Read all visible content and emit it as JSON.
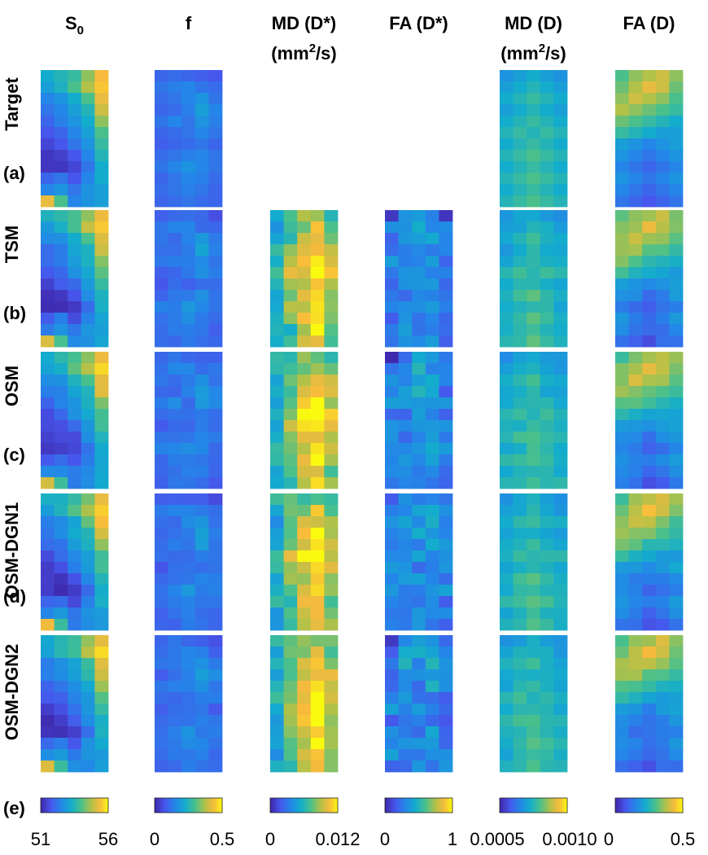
{
  "chart_data": {
    "type": "heatmap",
    "columns": [
      {
        "id": "S0",
        "header_main": "S",
        "header_sub": "0",
        "header_line2": ""
      },
      {
        "id": "f",
        "header_main": "f",
        "header_sub": "",
        "header_line2": ""
      },
      {
        "id": "MDDs",
        "header_main": "MD (D*)",
        "header_sub": "",
        "header_line2_a": "(mm",
        "header_line2_sup": "2",
        "header_line2_b": "/s)"
      },
      {
        "id": "FADs",
        "header_main": "FA (D*)",
        "header_sub": "",
        "header_line2": ""
      },
      {
        "id": "MDD",
        "header_main": "MD (D)",
        "header_sub": "",
        "header_line2_a": "(mm",
        "header_line2_sup": "2",
        "header_line2_b": "/s)"
      },
      {
        "id": "FAD",
        "header_main": "FA (D)",
        "header_sub": "",
        "header_line2": ""
      }
    ],
    "rows": [
      {
        "method": "Target",
        "letter": "(a)",
        "present": [
          true,
          true,
          false,
          false,
          true,
          true
        ]
      },
      {
        "method": "TSM",
        "letter": "(b)",
        "present": [
          true,
          true,
          true,
          true,
          true,
          true
        ]
      },
      {
        "method": "OSM",
        "letter": "(c)",
        "present": [
          true,
          true,
          true,
          true,
          true,
          true
        ]
      },
      {
        "method": "OSM-DGN1",
        "letter": "(d)",
        "present": [
          true,
          true,
          true,
          true,
          true,
          true
        ]
      },
      {
        "method": "OSM-DGN2",
        "letter": "(e)",
        "present": [
          true,
          true,
          true,
          true,
          true,
          true
        ]
      }
    ],
    "grid_size": {
      "cols": 5,
      "rows": 12
    },
    "colormap": "parula",
    "colorbar_ticks": [
      {
        "min": "51",
        "max": "56"
      },
      {
        "min": "0",
        "max": "0.5"
      },
      {
        "min": "0",
        "max": "0.012"
      },
      {
        "min": "0",
        "max": "1"
      },
      {
        "min": "0.0005",
        "max": "0.0010"
      },
      {
        "min": "0",
        "max": "0.5"
      }
    ],
    "colorbar_tick_labels": [
      "51",
      "56",
      "0",
      "0.5",
      "0",
      "0.012",
      "0",
      "1",
      "0.0005",
      "0.0010",
      "0",
      "0.5"
    ],
    "maps_normalized": {
      "S0": [
        [
          0.45,
          0.5,
          0.55,
          0.7,
          0.88
        ],
        [
          0.4,
          0.48,
          0.6,
          0.75,
          0.9
        ],
        [
          0.3,
          0.35,
          0.45,
          0.6,
          0.85
        ],
        [
          0.25,
          0.3,
          0.4,
          0.5,
          0.8
        ],
        [
          0.2,
          0.28,
          0.35,
          0.45,
          0.7
        ],
        [
          0.15,
          0.2,
          0.3,
          0.4,
          0.6
        ],
        [
          0.1,
          0.15,
          0.25,
          0.35,
          0.55
        ],
        [
          0.05,
          0.08,
          0.15,
          0.3,
          0.5
        ],
        [
          0.05,
          0.05,
          0.1,
          0.25,
          0.45
        ],
        [
          0.2,
          0.25,
          0.15,
          0.3,
          0.45
        ],
        [
          0.3,
          0.35,
          0.25,
          0.35,
          0.4
        ],
        [
          0.85,
          0.6,
          0.3,
          0.35,
          0.4
        ]
      ],
      "f": [
        [
          0.2,
          0.22,
          0.2,
          0.18,
          0.15
        ],
        [
          0.25,
          0.28,
          0.3,
          0.25,
          0.22
        ],
        [
          0.22,
          0.25,
          0.3,
          0.35,
          0.25
        ],
        [
          0.2,
          0.22,
          0.28,
          0.4,
          0.3
        ],
        [
          0.25,
          0.3,
          0.25,
          0.35,
          0.28
        ],
        [
          0.2,
          0.22,
          0.25,
          0.3,
          0.25
        ],
        [
          0.18,
          0.2,
          0.22,
          0.25,
          0.2
        ],
        [
          0.22,
          0.25,
          0.28,
          0.3,
          0.25
        ],
        [
          0.25,
          0.3,
          0.35,
          0.3,
          0.25
        ],
        [
          0.2,
          0.25,
          0.3,
          0.28,
          0.22
        ],
        [
          0.22,
          0.25,
          0.28,
          0.25,
          0.2
        ],
        [
          0.2,
          0.22,
          0.25,
          0.22,
          0.2
        ]
      ],
      "MDDs": [
        [
          0.5,
          0.6,
          0.65,
          0.7,
          0.6
        ],
        [
          0.45,
          0.55,
          0.7,
          0.8,
          0.65
        ],
        [
          0.4,
          0.6,
          0.75,
          0.85,
          0.7
        ],
        [
          0.45,
          0.65,
          0.8,
          0.95,
          0.75
        ],
        [
          0.5,
          0.7,
          0.85,
          1.0,
          0.8
        ],
        [
          0.55,
          0.75,
          0.9,
          1.0,
          0.85
        ],
        [
          0.5,
          0.7,
          0.85,
          1.0,
          0.8
        ],
        [
          0.45,
          0.65,
          0.8,
          0.95,
          0.75
        ],
        [
          0.5,
          0.7,
          0.85,
          1.0,
          0.7
        ],
        [
          0.45,
          0.6,
          0.8,
          0.95,
          0.65
        ],
        [
          0.4,
          0.55,
          0.75,
          0.9,
          0.6
        ],
        [
          0.45,
          0.6,
          0.8,
          0.95,
          0.65
        ]
      ],
      "FADs": [
        [
          0.1,
          0.3,
          0.35,
          0.3,
          0.15
        ],
        [
          0.25,
          0.35,
          0.4,
          0.35,
          0.25
        ],
        [
          0.3,
          0.4,
          0.35,
          0.45,
          0.3
        ],
        [
          0.25,
          0.3,
          0.4,
          0.35,
          0.25
        ],
        [
          0.3,
          0.35,
          0.3,
          0.4,
          0.3
        ],
        [
          0.25,
          0.3,
          0.35,
          0.3,
          0.25
        ],
        [
          0.3,
          0.35,
          0.3,
          0.35,
          0.3
        ],
        [
          0.25,
          0.3,
          0.35,
          0.3,
          0.25
        ],
        [
          0.3,
          0.35,
          0.3,
          0.35,
          0.3
        ],
        [
          0.25,
          0.3,
          0.35,
          0.3,
          0.25
        ],
        [
          0.3,
          0.35,
          0.3,
          0.35,
          0.3
        ],
        [
          0.25,
          0.3,
          0.35,
          0.3,
          0.25
        ]
      ],
      "MDD": [
        [
          0.35,
          0.4,
          0.45,
          0.4,
          0.35
        ],
        [
          0.4,
          0.45,
          0.5,
          0.45,
          0.4
        ],
        [
          0.45,
          0.5,
          0.55,
          0.5,
          0.45
        ],
        [
          0.4,
          0.45,
          0.5,
          0.45,
          0.4
        ],
        [
          0.45,
          0.5,
          0.55,
          0.5,
          0.45
        ],
        [
          0.5,
          0.55,
          0.5,
          0.55,
          0.5
        ],
        [
          0.45,
          0.5,
          0.55,
          0.5,
          0.45
        ],
        [
          0.5,
          0.55,
          0.6,
          0.55,
          0.5
        ],
        [
          0.45,
          0.5,
          0.55,
          0.5,
          0.45
        ],
        [
          0.5,
          0.55,
          0.6,
          0.55,
          0.5
        ],
        [
          0.45,
          0.5,
          0.55,
          0.5,
          0.45
        ],
        [
          0.5,
          0.55,
          0.6,
          0.55,
          0.5
        ]
      ],
      "FAD": [
        [
          0.6,
          0.7,
          0.75,
          0.8,
          0.7
        ],
        [
          0.65,
          0.75,
          0.85,
          0.8,
          0.65
        ],
        [
          0.7,
          0.8,
          0.75,
          0.7,
          0.6
        ],
        [
          0.75,
          0.7,
          0.65,
          0.6,
          0.55
        ],
        [
          0.65,
          0.6,
          0.55,
          0.5,
          0.45
        ],
        [
          0.55,
          0.5,
          0.45,
          0.4,
          0.4
        ],
        [
          0.4,
          0.35,
          0.3,
          0.35,
          0.4
        ],
        [
          0.35,
          0.3,
          0.25,
          0.3,
          0.35
        ],
        [
          0.3,
          0.25,
          0.2,
          0.25,
          0.3
        ],
        [
          0.35,
          0.3,
          0.25,
          0.3,
          0.35
        ],
        [
          0.3,
          0.25,
          0.2,
          0.25,
          0.3
        ],
        [
          0.25,
          0.2,
          0.15,
          0.2,
          0.25
        ]
      ]
    }
  }
}
